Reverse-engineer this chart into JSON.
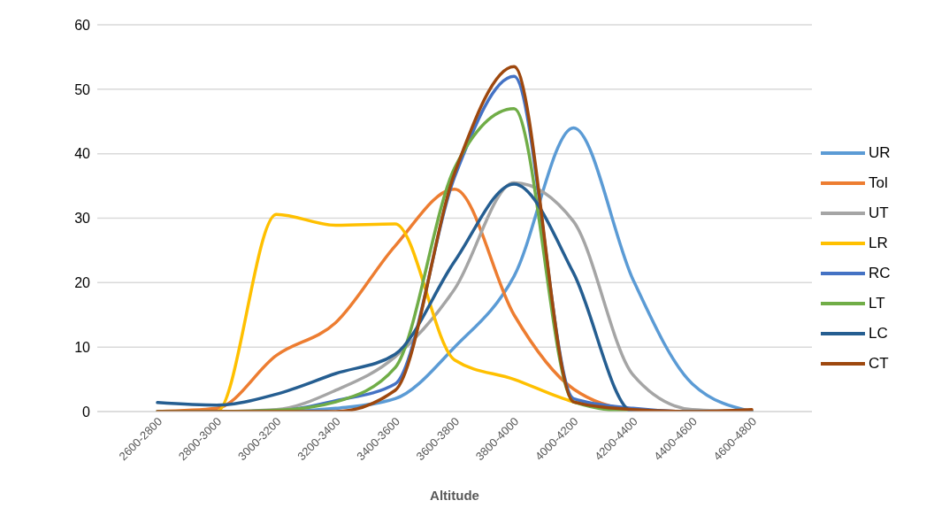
{
  "chart_data": {
    "type": "line",
    "xlabel": "Altitude",
    "categories": [
      "2600-2800",
      "2800-3000",
      "3000-3200",
      "3200-3400",
      "3400-3600",
      "3600-3800",
      "3800-4000",
      "4000-4200",
      "4200-4400",
      "4400-4600",
      "4600-4800"
    ],
    "series": [
      {
        "name": "UR",
        "color": "#5b9bd5",
        "values": [
          0,
          0,
          0,
          0.5,
          2,
          10,
          21,
          44,
          20.5,
          4.3,
          0
        ]
      },
      {
        "name": "Tol",
        "color": "#ed7d31",
        "values": [
          0,
          0.5,
          8.7,
          13.8,
          25.7,
          34.5,
          15,
          3.5,
          0.3,
          0,
          0
        ]
      },
      {
        "name": "UT",
        "color": "#a5a5a5",
        "values": [
          0,
          0,
          0.3,
          3.3,
          8.5,
          19,
          35.5,
          29.5,
          5.7,
          0.3,
          0
        ]
      },
      {
        "name": "LR",
        "color": "#ffc000",
        "values": [
          0,
          0,
          30.6,
          28.9,
          29.1,
          8,
          5,
          1.5,
          0,
          null,
          null
        ]
      },
      {
        "name": "RC",
        "color": "#4472c4",
        "values": [
          0,
          0,
          0.1,
          1.7,
          4.3,
          36.4,
          52,
          2,
          0.5,
          0,
          0
        ]
      },
      {
        "name": "LT",
        "color": "#70ad47",
        "values": [
          0,
          0,
          0.2,
          1.5,
          6.8,
          37.8,
          47,
          1.5,
          0,
          0,
          0
        ]
      },
      {
        "name": "LC",
        "color": "#255e91",
        "values": [
          1.4,
          1,
          2.7,
          5.9,
          8.9,
          23.3,
          35.3,
          21.5,
          0,
          0,
          0
        ]
      },
      {
        "name": "CT",
        "color": "#9e480e",
        "values": [
          0,
          0,
          0,
          0,
          3.3,
          37,
          53.5,
          1.5,
          0.3,
          0,
          0.3
        ]
      }
    ],
    "ylim": [
      0,
      60
    ],
    "yticks": [
      0,
      10,
      20,
      30,
      40,
      50,
      60
    ],
    "grid": "y",
    "legend": "right",
    "marker": "none",
    "line_style": "solid"
  }
}
